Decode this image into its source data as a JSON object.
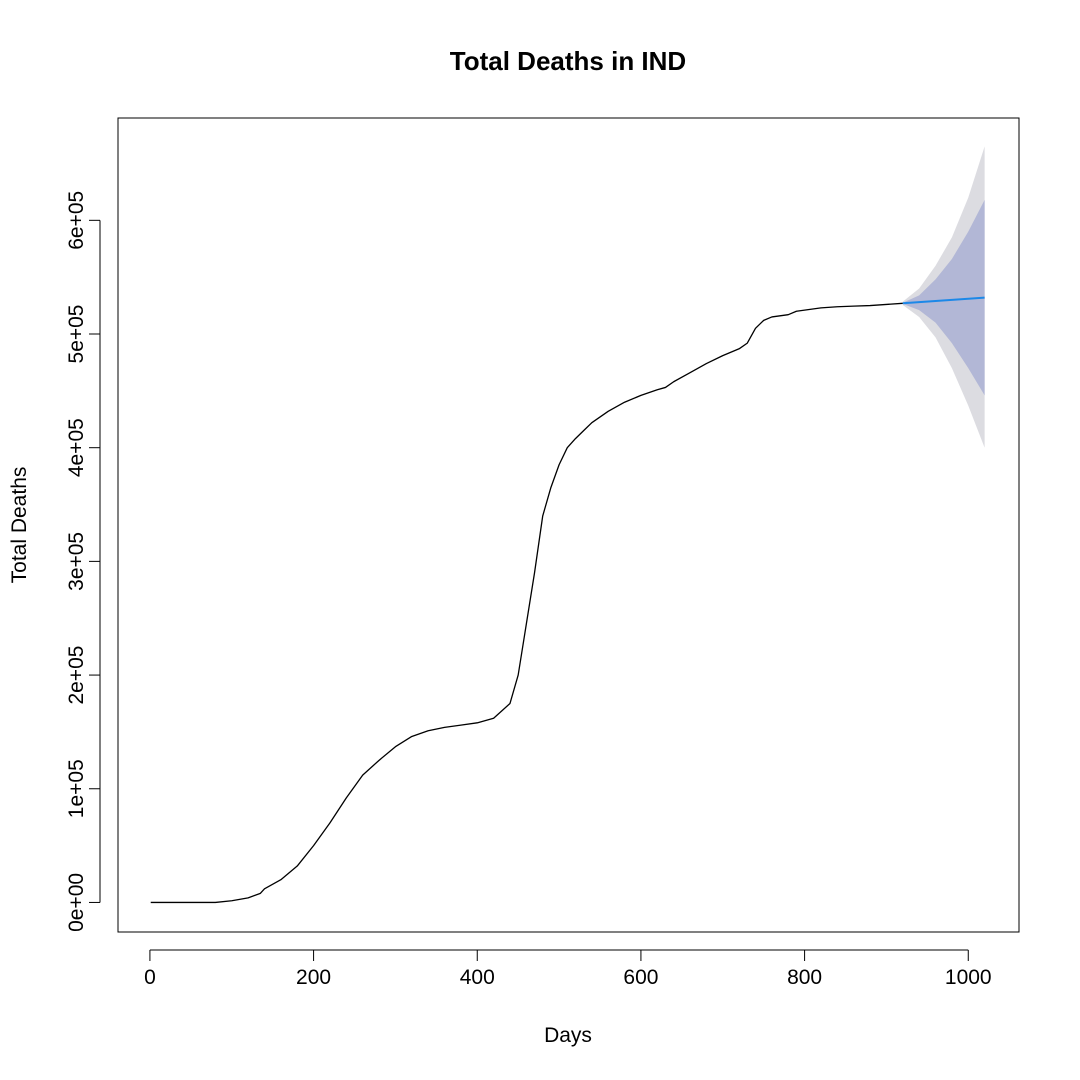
{
  "chart_data": {
    "type": "line",
    "title": "Total Deaths in IND",
    "xlabel": "Days",
    "ylabel": "Total Deaths",
    "xlim": [
      -39,
      1062
    ],
    "ylim": [
      -26000,
      690000
    ],
    "xticks": [
      0,
      200,
      400,
      600,
      800,
      1000
    ],
    "xtick_labels": [
      "0",
      "200",
      "400",
      "600",
      "800",
      "1000"
    ],
    "yticks": [
      0,
      100000,
      200000,
      300000,
      400000,
      500000,
      600000
    ],
    "ytick_labels": [
      "0e+00",
      "1e+05",
      "2e+05",
      "3e+05",
      "4e+05",
      "5e+05",
      "6e+05"
    ],
    "grid": false,
    "legend": "none",
    "series": [
      {
        "role": "observed",
        "color": "#000000",
        "x": [
          1,
          50,
          80,
          100,
          120,
          135,
          140,
          160,
          180,
          200,
          220,
          240,
          260,
          280,
          300,
          320,
          340,
          360,
          380,
          400,
          420,
          440,
          450,
          460,
          470,
          480,
          490,
          500,
          510,
          520,
          530,
          540,
          560,
          580,
          600,
          620,
          630,
          640,
          660,
          680,
          700,
          720,
          730,
          740,
          750,
          760,
          780,
          790,
          800,
          820,
          840,
          860,
          880,
          900,
          920
        ],
        "y": [
          0,
          0,
          0,
          1500,
          4000,
          8000,
          12000,
          20000,
          32000,
          50000,
          70000,
          92000,
          112000,
          125000,
          137000,
          146000,
          151000,
          154000,
          156000,
          158000,
          162000,
          175000,
          200000,
          245000,
          290000,
          340000,
          365000,
          385000,
          400000,
          408000,
          415000,
          422000,
          432000,
          440000,
          446000,
          451000,
          453000,
          458000,
          466000,
          474000,
          481000,
          487000,
          492000,
          505000,
          512000,
          515000,
          517000,
          520000,
          521000,
          523000,
          524000,
          524500,
          525000,
          526000,
          527000
        ]
      },
      {
        "role": "forecast",
        "color": "#1c88e8",
        "x": [
          920,
          1020
        ],
        "y": [
          527000,
          532000
        ]
      }
    ],
    "bands": [
      {
        "level": "outer",
        "color": "#dcdce1",
        "x": [
          920,
          940,
          960,
          980,
          1000,
          1020
        ],
        "upper": [
          528500,
          540000,
          560000,
          585000,
          620000,
          665000
        ],
        "lower": [
          525500,
          515000,
          497000,
          470000,
          437000,
          400000
        ]
      },
      {
        "level": "inner",
        "color": "#b2b7d6",
        "x": [
          920,
          940,
          960,
          980,
          1000,
          1020
        ],
        "upper": [
          527500,
          534000,
          548000,
          566000,
          590000,
          618000
        ],
        "lower": [
          526500,
          521000,
          510000,
          492000,
          470000,
          446000
        ]
      }
    ]
  }
}
